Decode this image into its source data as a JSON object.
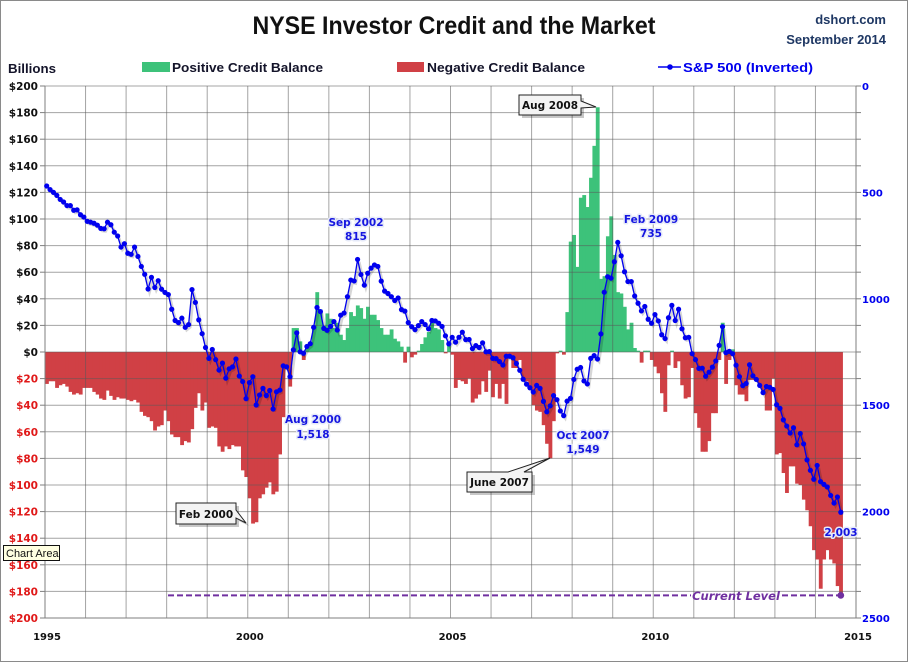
{
  "header": {
    "title": "NYSE Investor Credit and the Market",
    "source": "dshort.com",
    "date": "September 2014"
  },
  "legend": {
    "y_unit": "Billions",
    "positive": "Positive Credit Balance",
    "negative": "Negative Credit Balance",
    "sp500": "S&P 500 (Inverted)"
  },
  "tooltip": {
    "text": "Chart Area"
  },
  "colors": {
    "positive": "#3DC27A",
    "negative": "#D04045",
    "sp500": "#0000EE",
    "current_level": "#7030A0",
    "negative_tick": "#E01818",
    "positive_tick": "#111111",
    "grid": "#8C8C8C"
  },
  "chart_data": {
    "type": "bar",
    "title": "NYSE Investor Credit and the Market",
    "ylabel": "Billions",
    "y2label": "S&P 500 (Inverted)",
    "xlim": [
      1995,
      2015
    ],
    "ylim": [
      -200,
      200
    ],
    "y2lim": [
      0,
      2500
    ],
    "y2_inverted": true,
    "x_start": "1995-01",
    "x_frequency": "monthly",
    "grid": true,
    "legend_position": "top",
    "xticks": [
      {
        "label": "1995",
        "value": 1995
      },
      {
        "label": "2000",
        "value": 2000
      },
      {
        "label": "2005",
        "value": 2005
      },
      {
        "label": "2010",
        "value": 2010
      },
      {
        "label": "2015",
        "value": 2015
      }
    ],
    "yticks": [
      {
        "label": "$200",
        "value": 200
      },
      {
        "label": "$180",
        "value": 180
      },
      {
        "label": "$160",
        "value": 160
      },
      {
        "label": "$140",
        "value": 140
      },
      {
        "label": "$120",
        "value": 120
      },
      {
        "label": "$100",
        "value": 100
      },
      {
        "label": "$80",
        "value": 80
      },
      {
        "label": "$60",
        "value": 60
      },
      {
        "label": "$40",
        "value": 40
      },
      {
        "label": "$20",
        "value": 20
      },
      {
        "label": "$0",
        "value": 0
      },
      {
        "label": "$20",
        "value": -20
      },
      {
        "label": "$40",
        "value": -40
      },
      {
        "label": "$60",
        "value": -60
      },
      {
        "label": "$80",
        "value": -80
      },
      {
        "label": "$100",
        "value": -100
      },
      {
        "label": "$120",
        "value": -120
      },
      {
        "label": "$140",
        "value": -140
      },
      {
        "label": "$160",
        "value": -160
      },
      {
        "label": "$180",
        "value": -180
      },
      {
        "label": "$200",
        "value": -200
      }
    ],
    "y2ticks": [
      {
        "label": "0",
        "value": 0
      },
      {
        "label": "500",
        "value": 500
      },
      {
        "label": "1000",
        "value": 1000
      },
      {
        "label": "1500",
        "value": 1500
      },
      {
        "label": "2000",
        "value": 2000
      },
      {
        "label": "2500",
        "value": 2500
      }
    ],
    "series": [
      {
        "name": "Credit Balance",
        "type": "bar",
        "axis": "left",
        "positive_label": "Positive Credit Balance",
        "negative_label": "Negative Credit Balance",
        "values": [
          -24,
          -22,
          -22,
          -27,
          -25,
          -24,
          -26,
          -30,
          -32,
          -31,
          -32,
          -27,
          -27,
          -27,
          -30,
          -32,
          -35,
          -36,
          -29,
          -33,
          -36,
          -34,
          -35,
          -35,
          -36,
          -37,
          -36,
          -38,
          -45,
          -48,
          -49,
          -52,
          -59,
          -56,
          -55,
          -44,
          -52,
          -62,
          -64,
          -64,
          -70,
          -67,
          -68,
          -58,
          -42,
          -31,
          -44,
          -38,
          -57,
          -56,
          -57,
          -71,
          -75,
          -71,
          -73,
          -70,
          -71,
          -71,
          -89,
          -94,
          -110,
          -129,
          -128,
          -110,
          -107,
          -102,
          -98,
          -107,
          -105,
          -77,
          -49,
          -12,
          -26,
          18,
          18,
          8,
          -6,
          4,
          6,
          19,
          45,
          32,
          18,
          29,
          25,
          18,
          22,
          13,
          9,
          18,
          30,
          27,
          35,
          33,
          25,
          34,
          28,
          28,
          24,
          18,
          13,
          13,
          17,
          10,
          8,
          4,
          -8,
          4,
          -4,
          -2,
          1,
          6,
          11,
          15,
          22,
          18,
          17,
          9,
          -1,
          6,
          -2,
          -27,
          -21,
          -22,
          -24,
          -20,
          -38,
          -35,
          -32,
          -22,
          -30,
          -14,
          -34,
          -24,
          -35,
          -24,
          -39,
          -5,
          -12,
          -12,
          -6,
          -20,
          -22,
          -26,
          -40,
          -44,
          -45,
          -55,
          -69,
          -80,
          -52,
          -1,
          1,
          -2,
          30,
          83,
          88,
          64,
          116,
          118,
          109,
          131,
          155,
          184,
          55,
          57,
          87,
          102,
          73,
          45,
          44,
          34,
          17,
          22,
          3,
          1,
          -8,
          1,
          1,
          -6,
          -11,
          -16,
          -31,
          -45,
          -10,
          1,
          -12,
          -7,
          -25,
          -35,
          -34,
          -12,
          -46,
          -57,
          -75,
          -75,
          -67,
          -46,
          -46,
          -6,
          22,
          -24,
          -6,
          2,
          -25,
          -32,
          -32,
          -37,
          -21,
          -21,
          -20,
          -24,
          -29,
          -44,
          -44,
          -20,
          -77,
          -76,
          -91,
          -106,
          -86,
          -86,
          -99,
          -100,
          -111,
          -119,
          -131,
          -149,
          -156,
          -178,
          -156,
          -149,
          -156,
          -159,
          -176,
          -183
        ]
      },
      {
        "name": "S&P 500 (Inverted)",
        "type": "line",
        "axis": "right",
        "values": [
          470,
          487,
          500,
          514,
          533,
          545,
          562,
          562,
          584,
          582,
          605,
          616,
          636,
          640,
          645,
          654,
          669,
          671,
          640,
          652,
          687,
          705,
          757,
          741,
          786,
          791,
          757,
          801,
          848,
          885,
          954,
          899,
          947,
          915,
          955,
          970,
          980,
          1049,
          1102,
          1112,
          1091,
          1134,
          1121,
          957,
          1017,
          1099,
          1164,
          1229,
          1280,
          1238,
          1286,
          1335,
          1302,
          1373,
          1329,
          1320,
          1283,
          1363,
          1389,
          1469,
          1394,
          1366,
          1499,
          1452,
          1421,
          1455,
          1431,
          1518,
          1437,
          1429,
          1315,
          1320,
          1366,
          1240,
          1160,
          1249,
          1256,
          1224,
          1211,
          1134,
          1041,
          1060,
          1139,
          1148,
          1130,
          1107,
          1147,
          1077,
          1067,
          990,
          912,
          916,
          815,
          886,
          936,
          880,
          856,
          841,
          848,
          917,
          964,
          975,
          990,
          1008,
          996,
          1051,
          1058,
          1112,
          1131,
          1145,
          1126,
          1107,
          1121,
          1141,
          1102,
          1104,
          1115,
          1130,
          1174,
          1212,
          1181,
          1204,
          1181,
          1157,
          1192,
          1191,
          1234,
          1220,
          1229,
          1207,
          1249,
          1248,
          1280,
          1281,
          1295,
          1311,
          1270,
          1270,
          1277,
          1304,
          1336,
          1378,
          1401,
          1418,
          1438,
          1407,
          1421,
          1482,
          1531,
          1503,
          1455,
          1474,
          1527,
          1549,
          1481,
          1468,
          1379,
          1331,
          1323,
          1386,
          1400,
          1280,
          1267,
          1283,
          1165,
          969,
          896,
          903,
          826,
          735,
          798,
          873,
          919,
          919,
          987,
          1021,
          1057,
          1036,
          1096,
          1115,
          1074,
          1104,
          1169,
          1187,
          1089,
          1031,
          1102,
          1049,
          1141,
          1183,
          1181,
          1258,
          1286,
          1327,
          1326,
          1364,
          1345,
          1321,
          1292,
          1219,
          1131,
          1253,
          1247,
          1258,
          1312,
          1366,
          1408,
          1398,
          1310,
          1362,
          1379,
          1407,
          1441,
          1412,
          1416,
          1426,
          1498,
          1515,
          1569,
          1598,
          1631,
          1606,
          1686,
          1633,
          1682,
          1757,
          1806,
          1848,
          1783,
          1859,
          1872,
          1884,
          1924,
          1960,
          1931,
          2003
        ]
      }
    ],
    "annotations": [
      {
        "type": "callout",
        "series": "Credit Balance",
        "date": "2000-02",
        "value": -129,
        "lines": [
          "Feb 2000"
        ]
      },
      {
        "type": "callout",
        "series": "Credit Balance",
        "date": "2007-06",
        "value": -80,
        "lines": [
          "June 2007"
        ]
      },
      {
        "type": "callout",
        "series": "Credit Balance",
        "date": "2008-08",
        "value": 184,
        "lines": [
          "Aug 2008"
        ]
      },
      {
        "type": "label",
        "series": "S&P 500 (Inverted)",
        "date": "2000-08",
        "value": 1518,
        "lines": [
          "Aug 2000",
          "1,518"
        ]
      },
      {
        "type": "label",
        "series": "S&P 500 (Inverted)",
        "date": "2002-09",
        "value": 815,
        "lines": [
          "Sep 2002",
          "815"
        ]
      },
      {
        "type": "label",
        "series": "S&P 500 (Inverted)",
        "date": "2007-10",
        "value": 1549,
        "lines": [
          "Oct 2007",
          "1,549"
        ]
      },
      {
        "type": "label",
        "series": "S&P 500 (Inverted)",
        "date": "2009-02",
        "value": 735,
        "lines": [
          "Feb 2009",
          "735"
        ]
      },
      {
        "type": "label",
        "series": "S&P 500 (Inverted)",
        "date": "2014-08",
        "value": 2003,
        "lines": [
          "2,003"
        ]
      }
    ],
    "current_level": {
      "label": "Current Level",
      "value": -183
    }
  }
}
